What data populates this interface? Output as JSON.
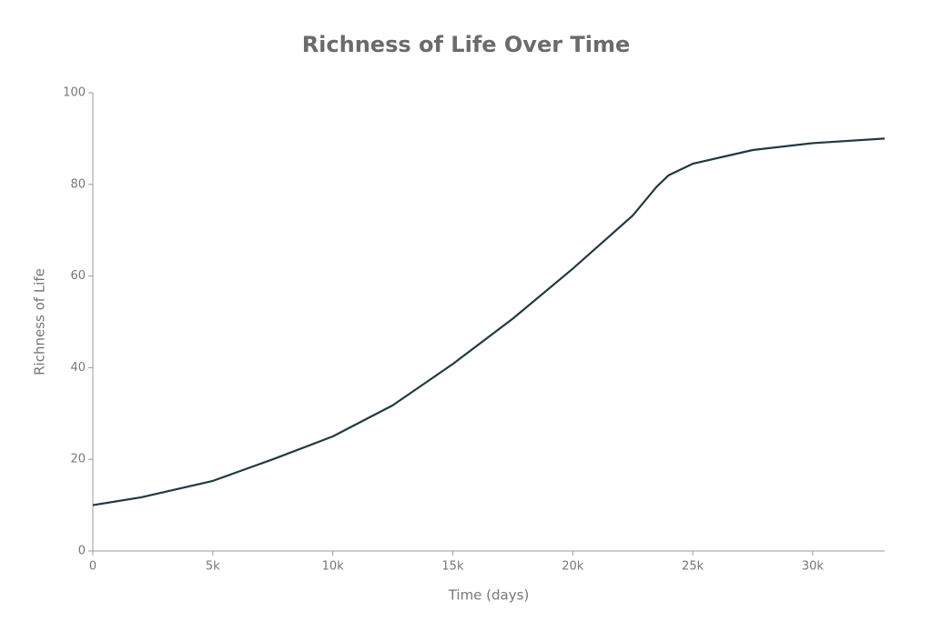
{
  "chart_data": {
    "type": "line",
    "title": "Richness of Life Over Time",
    "x_label": "Time (days)",
    "y_label": "Richness of Life",
    "x": [
      0,
      2000,
      5000,
      7500,
      10000,
      12500,
      15000,
      17500,
      20000,
      22500,
      23500,
      24000,
      25000,
      27500,
      30000,
      33000
    ],
    "series": [
      {
        "name": "Richness of Life",
        "color": "#1f3a40",
        "values": [
          10,
          11.7,
          15.3,
          20,
          25,
          31.8,
          40.8,
          50.7,
          61.6,
          73.2,
          79.5,
          82,
          84.5,
          87.5,
          89,
          90
        ]
      }
    ],
    "xlim": [
      0,
      33000
    ],
    "xticks": [
      0,
      {
        "value": 5000,
        "label": "5k"
      },
      {
        "value": 10000,
        "label": "10k"
      },
      {
        "value": 15000,
        "label": "15k"
      },
      {
        "value": 20000,
        "label": "20k"
      },
      {
        "value": 25000,
        "label": "25k"
      },
      {
        "value": 30000,
        "label": "30k"
      }
    ],
    "ylim": [
      0,
      100
    ],
    "yticks": [
      0,
      20,
      40,
      60,
      80,
      100
    ],
    "grid": false
  }
}
